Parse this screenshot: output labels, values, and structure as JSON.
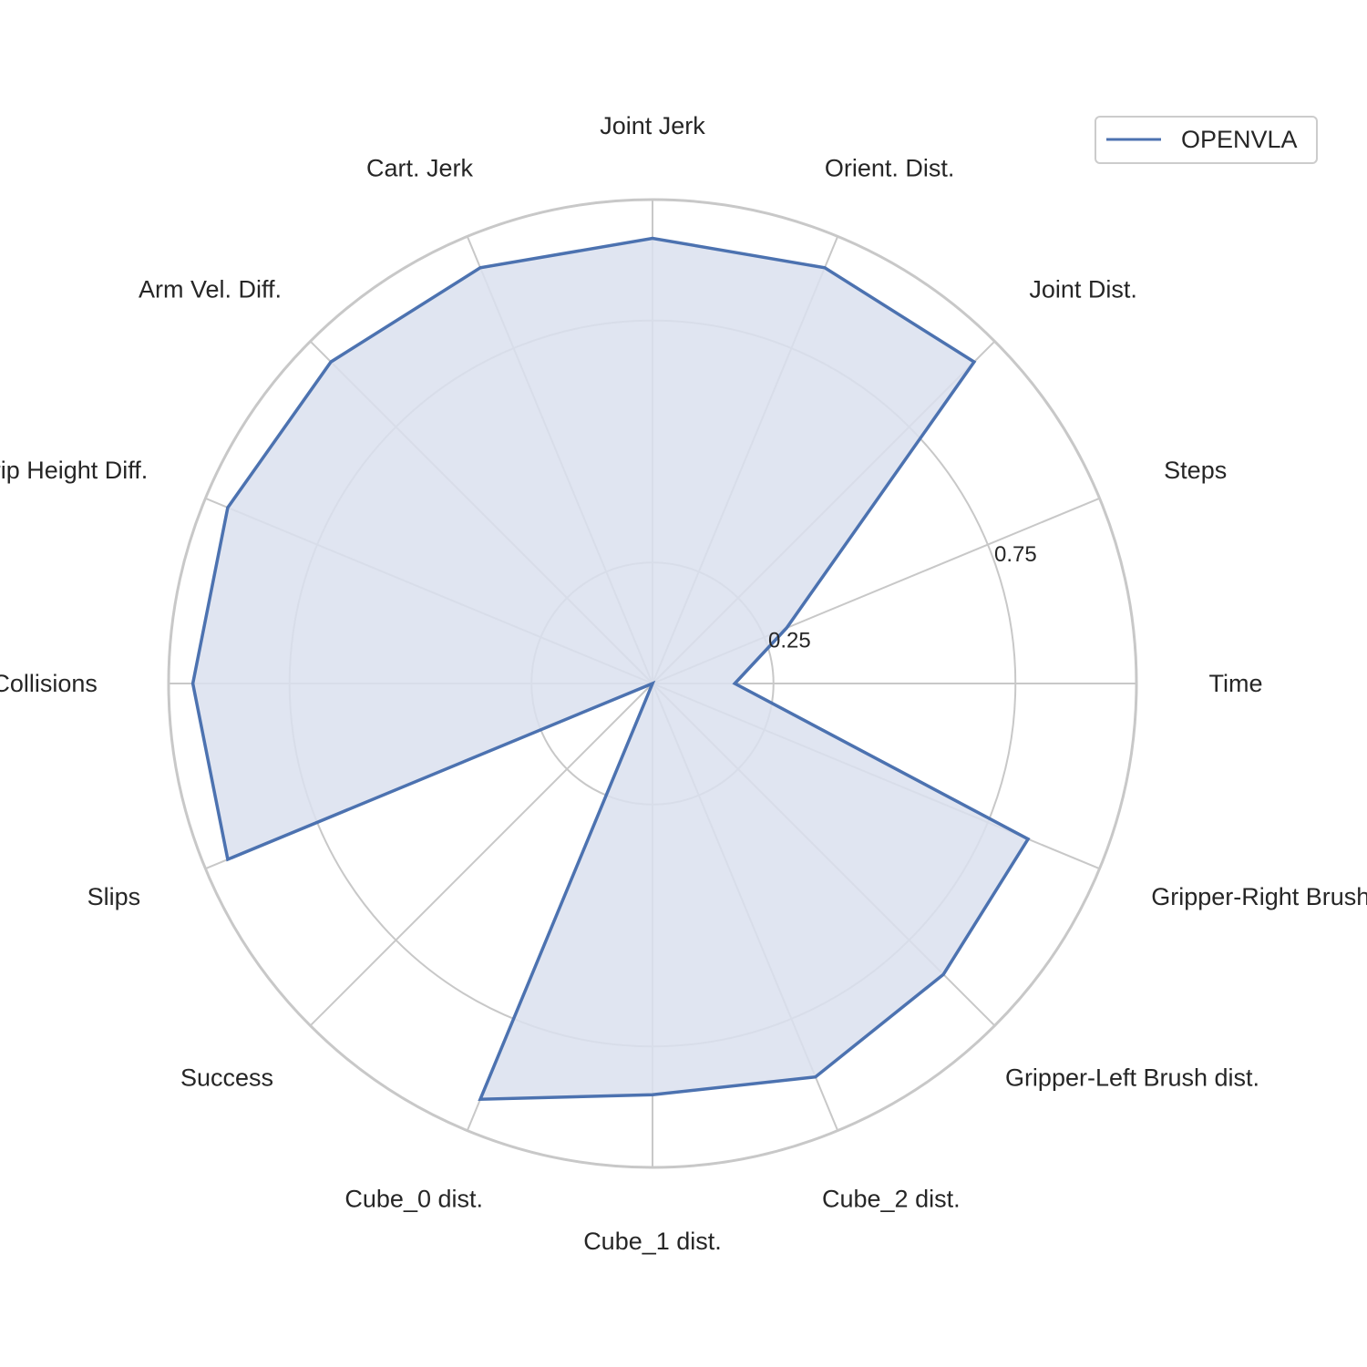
{
  "chart_data": {
    "type": "radar",
    "categories": [
      "Time",
      "Steps",
      "Joint Dist.",
      "Orient. Dist.",
      "Joint Jerk",
      "Cart. Jerk",
      "Arm Vel. Diff.",
      "Grip Height Diff.",
      "Collisions",
      "Slips",
      "Success",
      "Cube_0 dist.",
      "Cube_1 dist.",
      "Cube_2 dist.",
      "Gripper-Left Brush dist.",
      "Gripper-Right Brush dist."
    ],
    "series": [
      {
        "name": "OPENVLA",
        "values": [
          0.17,
          0.3,
          0.94,
          0.93,
          0.92,
          0.93,
          0.94,
          0.95,
          0.95,
          0.95,
          0.0,
          0.93,
          0.85,
          0.88,
          0.85,
          0.84
        ]
      }
    ],
    "rlim": [
      0,
      1
    ],
    "radial_ticks": [
      0.25,
      0.75
    ],
    "gridlines": [
      0.25,
      0.75,
      1.0
    ],
    "grid": true,
    "legend": "top-right",
    "colors": {
      "series_line": "#4c72b0",
      "series_fill": "#dae1ef",
      "grid": "#c8c8c8",
      "outer_ring": "#c8c8c8"
    }
  }
}
